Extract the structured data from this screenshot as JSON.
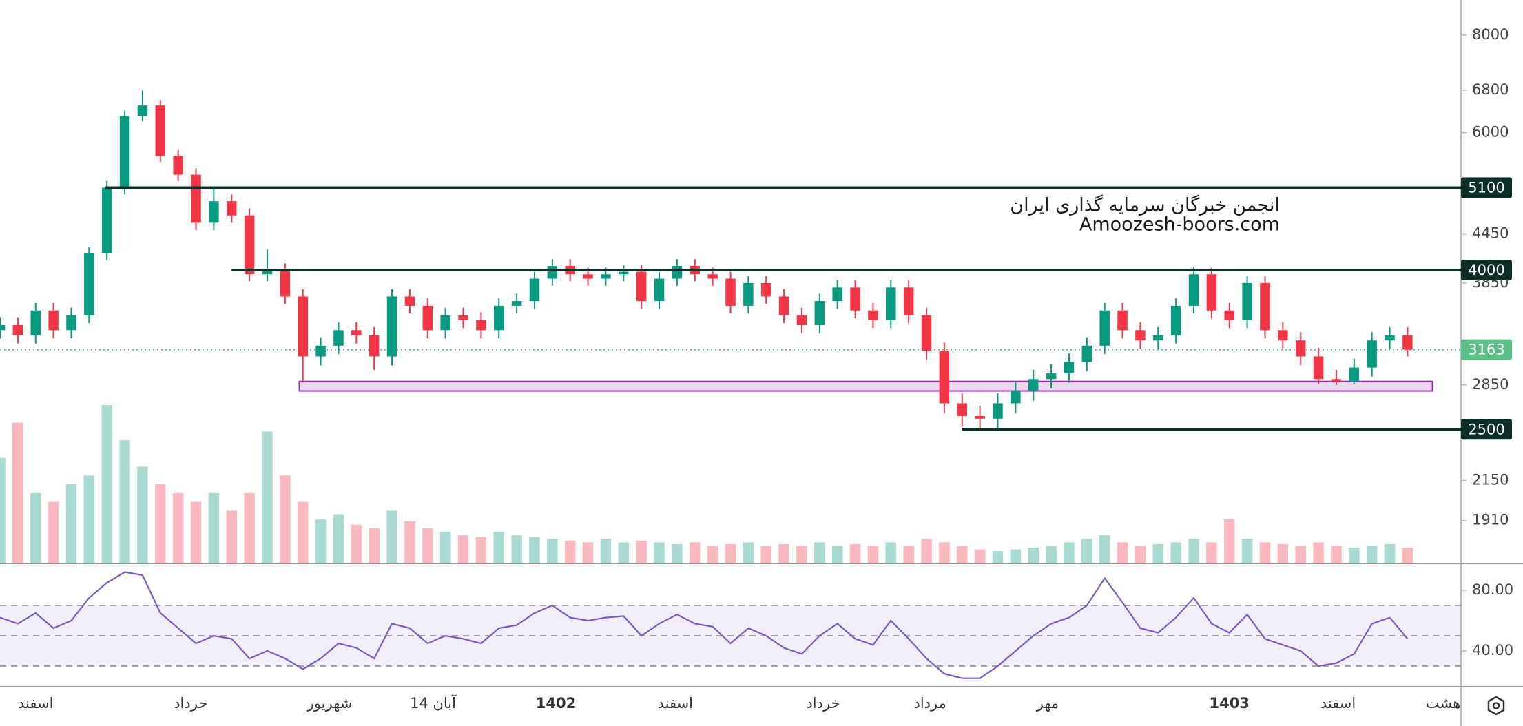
{
  "chart_data": {
    "type": "candlestick",
    "watermark": [
      "انجمن خبرگان سرمایه گذاری ایران",
      "Amoozesh-boors.com"
    ],
    "xlim": [
      0,
      82
    ],
    "xticks": [
      {
        "value": 2,
        "label": "اسفند"
      },
      {
        "value": 10.7,
        "label": "خرداد"
      },
      {
        "value": 18.5,
        "label": "شهریور"
      },
      {
        "value": 24.3,
        "label": "14 آبان"
      },
      {
        "value": 31.2,
        "label": "1402",
        "bold": true
      },
      {
        "value": 37.9,
        "label": "اسفند"
      },
      {
        "value": 46.2,
        "label": "خرداد"
      },
      {
        "value": 52.2,
        "label": "مرداد"
      },
      {
        "value": 58.8,
        "label": "مهر"
      },
      {
        "value": 69,
        "label": "1403",
        "bold": true
      },
      {
        "value": 75.1,
        "label": "اسفند"
      },
      {
        "value": 81,
        "label": "هشت"
      }
    ],
    "log_scale": true,
    "ylim": [
      1683,
      8874
    ],
    "yticks": [
      1910,
      2150,
      2850,
      3850,
      4450,
      6000,
      6800,
      8000
    ],
    "up_color": "#089981",
    "down_color": "#f23645",
    "open": [
      3350,
      3400,
      3300,
      3550,
      3350,
      3500,
      4200,
      5100,
      6300,
      6500,
      5600,
      5300,
      4600,
      4900,
      4700,
      3950,
      4000,
      3700,
      3100,
      3200,
      3350,
      3300,
      3100,
      3700,
      3600,
      3350,
      3500,
      3450,
      3350,
      3600,
      3650,
      3900,
      4050,
      3950,
      3900,
      3950,
      3980,
      3650,
      3900,
      4050,
      3950,
      3900,
      3600,
      3850,
      3700,
      3500,
      3400,
      3650,
      3800,
      3550,
      3450,
      3800,
      3500,
      3150,
      2700,
      2600,
      2580,
      2700,
      2800,
      2900,
      2950,
      3050,
      3200,
      3550,
      3350,
      3250,
      3300,
      3600,
      3950,
      3550,
      3450,
      3850,
      3350,
      3250,
      3100,
      2900,
      2880,
      3000,
      3250,
      3300
    ],
    "high": [
      3480,
      3480,
      3630,
      3630,
      3580,
      4280,
      5200,
      6400,
      6800,
      6600,
      5700,
      5400,
      5100,
      5000,
      4800,
      4250,
      4080,
      3780,
      3280,
      3430,
      3430,
      3380,
      3780,
      3780,
      3680,
      3580,
      3580,
      3530,
      3680,
      3730,
      3980,
      4130,
      4130,
      4030,
      4030,
      4060,
      4060,
      3980,
      4130,
      4130,
      4030,
      3980,
      3930,
      3930,
      3780,
      3580,
      3730,
      3880,
      3880,
      3630,
      3880,
      3880,
      3580,
      3230,
      2780,
      2680,
      2780,
      2880,
      2980,
      3030,
      3130,
      3280,
      3630,
      3630,
      3430,
      3380,
      3680,
      4030,
      4030,
      3630,
      3930,
      3930,
      3430,
      3330,
      3180,
      2980,
      3080,
      3330,
      3380,
      3380
    ],
    "low": [
      3270,
      3220,
      3220,
      3270,
      3270,
      3420,
      4120,
      5000,
      6200,
      5500,
      5200,
      4500,
      4500,
      4600,
      3870,
      3870,
      3620,
      2870,
      3020,
      3120,
      3220,
      2980,
      3020,
      3520,
      3270,
      3270,
      3370,
      3270,
      3270,
      3520,
      3570,
      3820,
      3870,
      3820,
      3820,
      3870,
      3570,
      3570,
      3820,
      3870,
      3820,
      3520,
      3520,
      3620,
      3420,
      3320,
      3320,
      3570,
      3470,
      3370,
      3370,
      3420,
      3070,
      2620,
      2520,
      2500,
      2500,
      2620,
      2720,
      2820,
      2870,
      2970,
      3120,
      3270,
      3170,
      3170,
      3220,
      3520,
      3470,
      3370,
      3370,
      3270,
      3170,
      3020,
      2860,
      2850,
      2860,
      2920,
      3170,
      3100
    ],
    "close": [
      3400,
      3300,
      3550,
      3350,
      3500,
      4200,
      5100,
      6300,
      6500,
      5600,
      5300,
      4600,
      4900,
      4700,
      3950,
      4000,
      3700,
      3100,
      3200,
      3350,
      3300,
      3100,
      3700,
      3600,
      3350,
      3500,
      3450,
      3350,
      3600,
      3650,
      3900,
      4050,
      3950,
      3900,
      3950,
      3980,
      3650,
      3900,
      4050,
      3950,
      3900,
      3600,
      3850,
      3700,
      3500,
      3400,
      3650,
      3800,
      3550,
      3450,
      3800,
      3500,
      3150,
      2700,
      2600,
      2580,
      2700,
      2800,
      2900,
      2950,
      3050,
      3200,
      3550,
      3350,
      3250,
      3300,
      3600,
      3950,
      3550,
      3450,
      3850,
      3350,
      3250,
      3100,
      2900,
      2880,
      3000,
      3250,
      3300,
      3163
    ],
    "last_price_color": "#5cbf8a",
    "levels": [
      {
        "value": 5100,
        "from": 5.9
      },
      {
        "value": 4000,
        "from": 13
      },
      {
        "value": 2500,
        "from": 54
      }
    ],
    "level_color": "#0b2e27",
    "zone": {
      "low": 2800,
      "high": 2880,
      "from": 16.8,
      "to": 80.4,
      "color": "#9c27b0"
    },
    "volume": [
      60,
      80,
      40,
      35,
      45,
      50,
      90,
      70,
      55,
      45,
      40,
      35,
      40,
      30,
      40,
      75,
      50,
      35,
      25,
      28,
      22,
      20,
      30,
      24,
      20,
      18,
      16,
      15,
      18,
      16,
      15,
      14,
      13,
      12,
      14,
      12,
      13,
      12,
      11,
      12,
      10,
      11,
      12,
      10,
      11,
      10,
      12,
      10,
      11,
      10,
      12,
      10,
      14,
      12,
      10,
      8,
      7,
      8,
      9,
      10,
      12,
      14,
      16,
      12,
      10,
      11,
      12,
      14,
      12,
      25,
      14,
      12,
      11,
      10,
      12,
      10,
      9,
      10,
      11,
      9
    ],
    "rsi": {
      "values": [
        62,
        58,
        65,
        55,
        60,
        75,
        85,
        92,
        90,
        65,
        55,
        45,
        50,
        48,
        35,
        40,
        35,
        28,
        35,
        45,
        42,
        35,
        58,
        55,
        45,
        50,
        48,
        45,
        55,
        57,
        65,
        70,
        62,
        60,
        62,
        63,
        50,
        58,
        64,
        58,
        56,
        45,
        55,
        50,
        42,
        38,
        50,
        58,
        48,
        44,
        60,
        48,
        35,
        25,
        22,
        22,
        30,
        40,
        50,
        58,
        62,
        70,
        88,
        72,
        55,
        52,
        62,
        75,
        58,
        52,
        64,
        48,
        44,
        40,
        30,
        32,
        38,
        58,
        62,
        48
      ],
      "ylim": [
        16.4,
        97.7
      ],
      "yticks": [
        {
          "value": 80,
          "label": "80.00"
        },
        {
          "value": 40,
          "label": "40.00"
        }
      ],
      "bands": [
        70,
        50,
        30
      ],
      "color": "#7e57c2"
    }
  }
}
